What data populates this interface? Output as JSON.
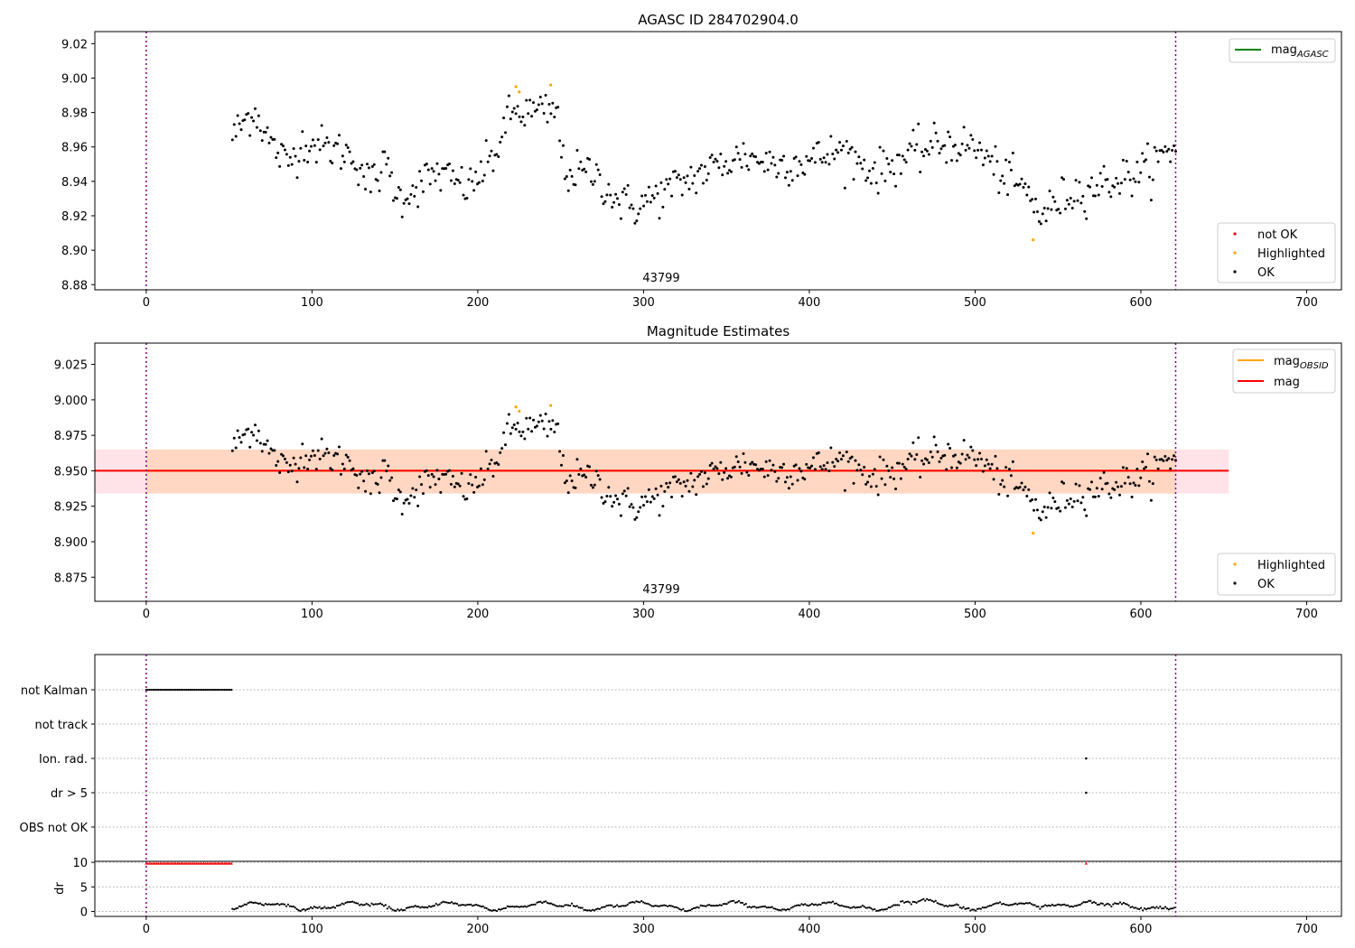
{
  "figure": {
    "title": "AGASC ID 284702904.0",
    "obsid_label": "43799",
    "colors": {
      "ok": "#000000",
      "highlighted": "#ffa500",
      "not_ok": "#ff0000",
      "mag_agasc": "#008000",
      "mag_obsid": "#ffa500",
      "mag": "#ff0000",
      "band_outer": "#ffc0cb",
      "band_inner": "#ffd2b4",
      "obsid_boundary": "#800080"
    }
  },
  "chart_data": [
    {
      "type": "scatter",
      "title": "AGASC ID 284702904.0",
      "annotation": "43799",
      "xlim": [
        -31,
        721
      ],
      "ylim": [
        8.877,
        9.027
      ],
      "xticks": [
        0,
        100,
        200,
        300,
        400,
        500,
        600,
        700
      ],
      "xtick_labels": [
        "0",
        "100",
        "200",
        "300",
        "400",
        "500",
        "600",
        "700"
      ],
      "yticks": [
        8.88,
        8.9,
        8.92,
        8.94,
        8.96,
        8.98,
        9.0,
        9.02
      ],
      "ytick_labels": [
        "8.88",
        "8.90",
        "8.92",
        "8.94",
        "8.96",
        "8.98",
        "9.00",
        "9.02"
      ],
      "vlines": [
        0,
        621
      ],
      "series_points": {
        "x_start": 52,
        "x_end": 621,
        "n": 540
      },
      "highlighted_points": [
        [
          223,
          8.995
        ],
        [
          225,
          8.992
        ],
        [
          244,
          8.996
        ],
        [
          535,
          8.906
        ]
      ],
      "not_ok_points": [],
      "mag_agasc_line": null,
      "legend_lines": [
        {
          "label": "mag",
          "sub": "AGASC",
          "color": "#008000"
        }
      ],
      "legend_points": [
        {
          "label": "not OK",
          "color": "#ff0000"
        },
        {
          "label": "Highlighted",
          "color": "#ffa500"
        },
        {
          "label": "OK",
          "color": "#000000"
        }
      ]
    },
    {
      "type": "scatter",
      "title": "Magnitude Estimates",
      "annotation": "43799",
      "xlim": [
        -31,
        721
      ],
      "ylim": [
        8.858,
        9.04
      ],
      "xticks": [
        0,
        100,
        200,
        300,
        400,
        500,
        600,
        700
      ],
      "xtick_labels": [
        "0",
        "100",
        "200",
        "300",
        "400",
        "500",
        "600",
        "700"
      ],
      "yticks": [
        8.875,
        8.9,
        8.925,
        8.95,
        8.975,
        9.0,
        9.025
      ],
      "ytick_labels": [
        "8.875",
        "8.900",
        "8.925",
        "8.950",
        "8.975",
        "9.000",
        "9.025"
      ],
      "vlines": [
        0,
        621
      ],
      "mag": 8.95,
      "mag_band": [
        8.934,
        8.965
      ],
      "mag_obsid_band": [
        8.934,
        8.965
      ],
      "obsid_xrange": [
        0,
        621
      ],
      "band_xrange": [
        -31,
        653
      ],
      "highlighted_points": [
        [
          223,
          8.995
        ],
        [
          225,
          8.992
        ],
        [
          244,
          8.996
        ],
        [
          535,
          8.906
        ]
      ],
      "legend_lines": [
        {
          "label": "mag",
          "sub": "OBSID",
          "color": "#ffa500"
        },
        {
          "label": "mag",
          "sub": "",
          "color": "#ff0000"
        }
      ],
      "legend_points": [
        {
          "label": "Highlighted",
          "color": "#ffa500"
        },
        {
          "label": "OK",
          "color": "#000000"
        }
      ]
    },
    {
      "type": "scatter",
      "title": "",
      "xlim": [
        -31,
        721
      ],
      "categories": [
        "not Kalman",
        "not track",
        "Ion. rad.",
        "dr > 5",
        "OBS not OK"
      ],
      "flags": {
        "not Kalman": {
          "x_start": 0,
          "x_end": 52
        },
        "Ion. rad.": {
          "points": [
            567
          ]
        },
        "dr > 5": {
          "points": [
            567
          ]
        }
      },
      "vlines": [
        0,
        621
      ]
    },
    {
      "type": "scatter",
      "title": "",
      "ylabel": "dr",
      "xlim": [
        -31,
        721
      ],
      "ylim": [
        -1,
        10.2
      ],
      "xticks": [
        0,
        100,
        200,
        300,
        400,
        500,
        600,
        700
      ],
      "xtick_labels": [
        "0",
        "100",
        "200",
        "300",
        "400",
        "500",
        "600",
        "700"
      ],
      "yticks": [
        0,
        5,
        10
      ],
      "ytick_labels": [
        "0",
        "5",
        "10"
      ],
      "clipped_points": {
        "x_start": 0,
        "x_end": 52,
        "y": 9.8,
        "extra": [
          567
        ]
      },
      "series_points": {
        "x_start": 52,
        "x_end": 621
      },
      "vlines": [
        0,
        621
      ]
    }
  ]
}
